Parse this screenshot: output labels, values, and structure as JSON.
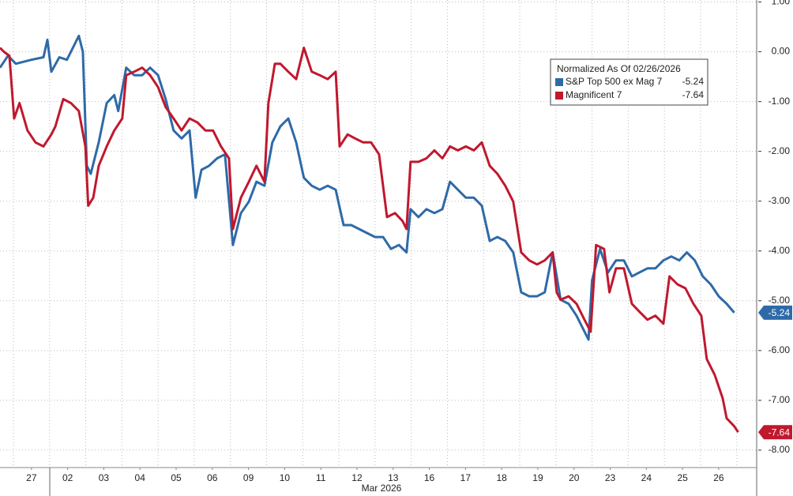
{
  "chart_data": {
    "type": "line",
    "legend_title": "Normalized As Of 02/26/2026",
    "xlabel": "Mar 2026",
    "xlim": [
      -0.37,
      20.55
    ],
    "xgrid": [
      0,
      1,
      2,
      3,
      4,
      5,
      6,
      7,
      8,
      9,
      10,
      11,
      12,
      13,
      14,
      15,
      16,
      17,
      18,
      19,
      20
    ],
    "xticks": [
      {
        "value": 0.5,
        "label": "27"
      },
      {
        "value": 1.5,
        "label": "02"
      },
      {
        "value": 2.5,
        "label": "03"
      },
      {
        "value": 3.5,
        "label": "04"
      },
      {
        "value": 4.5,
        "label": "05"
      },
      {
        "value": 5.5,
        "label": "06"
      },
      {
        "value": 6.5,
        "label": "09"
      },
      {
        "value": 7.5,
        "label": "10"
      },
      {
        "value": 8.5,
        "label": "11"
      },
      {
        "value": 9.5,
        "label": "12"
      },
      {
        "value": 10.5,
        "label": "13"
      },
      {
        "value": 11.5,
        "label": "16"
      },
      {
        "value": 12.5,
        "label": "17"
      },
      {
        "value": 13.5,
        "label": "18"
      },
      {
        "value": 14.5,
        "label": "19"
      },
      {
        "value": 15.5,
        "label": "20"
      },
      {
        "value": 16.5,
        "label": "23"
      },
      {
        "value": 17.5,
        "label": "24"
      },
      {
        "value": 18.5,
        "label": "25"
      },
      {
        "value": 19.5,
        "label": "26"
      }
    ],
    "ylim": [
      -8.35,
      1.04
    ],
    "yticks": [
      {
        "value": 1,
        "label": "1.00"
      },
      {
        "value": 0,
        "label": "0.00"
      },
      {
        "value": -1,
        "label": "-1.00"
      },
      {
        "value": -2,
        "label": "-2.00"
      },
      {
        "value": -3,
        "label": "-3.00"
      },
      {
        "value": -4,
        "label": "-4.00"
      },
      {
        "value": -5,
        "label": "-5.00"
      },
      {
        "value": -6,
        "label": "-6.00"
      },
      {
        "value": -7,
        "label": "-7.00"
      },
      {
        "value": -8,
        "label": "-8.00"
      }
    ],
    "grid": true,
    "legend": "upper right",
    "series": [
      {
        "name": "S&P Top 500 ex Mag 7",
        "color": "#2e6aa8",
        "x": [
          -0.37,
          -0.15,
          0.07,
          0.5,
          0.83,
          0.94,
          1.05,
          1.27,
          1.48,
          1.7,
          1.81,
          1.92,
          2.03,
          2.14,
          2.36,
          2.58,
          2.79,
          2.9,
          3.12,
          3.34,
          3.56,
          3.78,
          4.0,
          4.21,
          4.43,
          4.65,
          4.87,
          5.04,
          5.2,
          5.41,
          5.63,
          5.85,
          6.07,
          6.29,
          6.51,
          6.72,
          6.94,
          7.16,
          7.38,
          7.6,
          7.82,
          8.03,
          8.25,
          8.47,
          8.69,
          8.91,
          9.13,
          9.34,
          9.56,
          9.78,
          10.0,
          10.22,
          10.44,
          10.66,
          10.87,
          10.98,
          11.2,
          11.42,
          11.64,
          11.86,
          12.07,
          12.29,
          12.51,
          12.73,
          12.95,
          13.17,
          13.38,
          13.6,
          13.82,
          14.04,
          14.26,
          14.48,
          14.69,
          14.91,
          15.13,
          15.35,
          15.57,
          15.9,
          16.0,
          16.22,
          16.44,
          16.66,
          16.88,
          17.1,
          17.31,
          17.53,
          17.75,
          17.97,
          18.19,
          18.41,
          18.62,
          18.84,
          19.06,
          19.28,
          19.5,
          19.72,
          19.93
        ],
        "values": [
          -0.32,
          -0.08,
          -0.24,
          -0.16,
          -0.11,
          0.24,
          -0.4,
          -0.11,
          -0.16,
          0.16,
          0.32,
          0.0,
          -2.29,
          -2.45,
          -1.82,
          -1.03,
          -0.87,
          -1.19,
          -0.32,
          -0.47,
          -0.47,
          -0.32,
          -0.47,
          -0.95,
          -1.58,
          -1.74,
          -1.58,
          -2.93,
          -2.37,
          -2.29,
          -2.14,
          -2.06,
          -3.88,
          -3.24,
          -3.01,
          -2.61,
          -2.69,
          -1.82,
          -1.5,
          -1.34,
          -1.82,
          -2.53,
          -2.69,
          -2.77,
          -2.69,
          -2.77,
          -3.48,
          -3.48,
          -3.56,
          -3.64,
          -3.72,
          -3.72,
          -3.96,
          -3.88,
          -4.03,
          -3.16,
          -3.32,
          -3.16,
          -3.24,
          -3.16,
          -2.61,
          -2.77,
          -2.93,
          -2.93,
          -3.09,
          -3.8,
          -3.72,
          -3.8,
          -4.03,
          -4.83,
          -4.91,
          -4.91,
          -4.83,
          -4.03,
          -4.98,
          -5.06,
          -5.3,
          -5.78,
          -4.59,
          -3.96,
          -4.43,
          -4.19,
          -4.19,
          -4.51,
          -4.43,
          -4.35,
          -4.35,
          -4.19,
          -4.11,
          -4.19,
          -4.03,
          -4.19,
          -4.51,
          -4.67,
          -4.91,
          -5.06,
          -5.24
        ]
      },
      {
        "name": "Magnificent 7",
        "color": "#c0182e",
        "x": [
          -0.37,
          -0.26,
          -0.11,
          0.02,
          0.17,
          0.39,
          0.61,
          0.83,
          1.05,
          1.16,
          1.38,
          1.59,
          1.81,
          1.99,
          2.07,
          2.21,
          2.36,
          2.58,
          2.79,
          3.01,
          3.12,
          3.34,
          3.56,
          3.78,
          4.0,
          4.21,
          4.43,
          4.65,
          4.87,
          5.09,
          5.31,
          5.52,
          5.74,
          5.96,
          6.07,
          6.29,
          6.51,
          6.72,
          6.94,
          7.05,
          7.23,
          7.38,
          7.6,
          7.82,
          8.03,
          8.25,
          8.47,
          8.69,
          8.91,
          9.02,
          9.24,
          9.45,
          9.67,
          9.89,
          10.11,
          10.33,
          10.55,
          10.76,
          10.87,
          10.98,
          11.2,
          11.42,
          11.64,
          11.86,
          12.07,
          12.29,
          12.51,
          12.73,
          12.95,
          13.17,
          13.38,
          13.6,
          13.82,
          14.04,
          14.26,
          14.48,
          14.69,
          14.91,
          15.02,
          15.13,
          15.35,
          15.57,
          15.79,
          15.96,
          16.11,
          16.33,
          16.48,
          16.66,
          16.88,
          17.1,
          17.31,
          17.53,
          17.75,
          17.97,
          18.14,
          18.36,
          18.58,
          18.8,
          19.02,
          19.17,
          19.39,
          19.61,
          19.72,
          19.93,
          20.04
        ],
        "values": [
          0.08,
          0.0,
          -0.08,
          -1.34,
          -1.03,
          -1.58,
          -1.82,
          -1.9,
          -1.66,
          -1.5,
          -0.95,
          -1.03,
          -1.19,
          -1.9,
          -3.09,
          -2.93,
          -2.29,
          -1.9,
          -1.58,
          -1.34,
          -0.47,
          -0.4,
          -0.32,
          -0.47,
          -0.71,
          -1.11,
          -1.34,
          -1.58,
          -1.34,
          -1.42,
          -1.58,
          -1.58,
          -1.9,
          -2.14,
          -3.56,
          -2.93,
          -2.61,
          -2.29,
          -2.61,
          -1.03,
          -0.24,
          -0.24,
          -0.4,
          -0.55,
          0.08,
          -0.4,
          -0.47,
          -0.55,
          -0.4,
          -1.9,
          -1.66,
          -1.74,
          -1.82,
          -1.82,
          -2.06,
          -3.32,
          -3.24,
          -3.4,
          -3.56,
          -2.21,
          -2.21,
          -2.14,
          -1.98,
          -2.14,
          -1.9,
          -1.98,
          -1.9,
          -1.98,
          -1.82,
          -2.29,
          -2.45,
          -2.69,
          -3.01,
          -4.03,
          -4.19,
          -4.27,
          -4.19,
          -4.03,
          -4.83,
          -4.98,
          -4.91,
          -5.06,
          -5.38,
          -5.62,
          -3.88,
          -3.96,
          -4.83,
          -4.35,
          -4.35,
          -5.06,
          -5.22,
          -5.38,
          -5.3,
          -5.46,
          -4.51,
          -4.67,
          -4.75,
          -5.06,
          -5.3,
          -6.17,
          -6.49,
          -6.96,
          -7.36,
          -7.52,
          -7.64
        ]
      }
    ]
  }
}
